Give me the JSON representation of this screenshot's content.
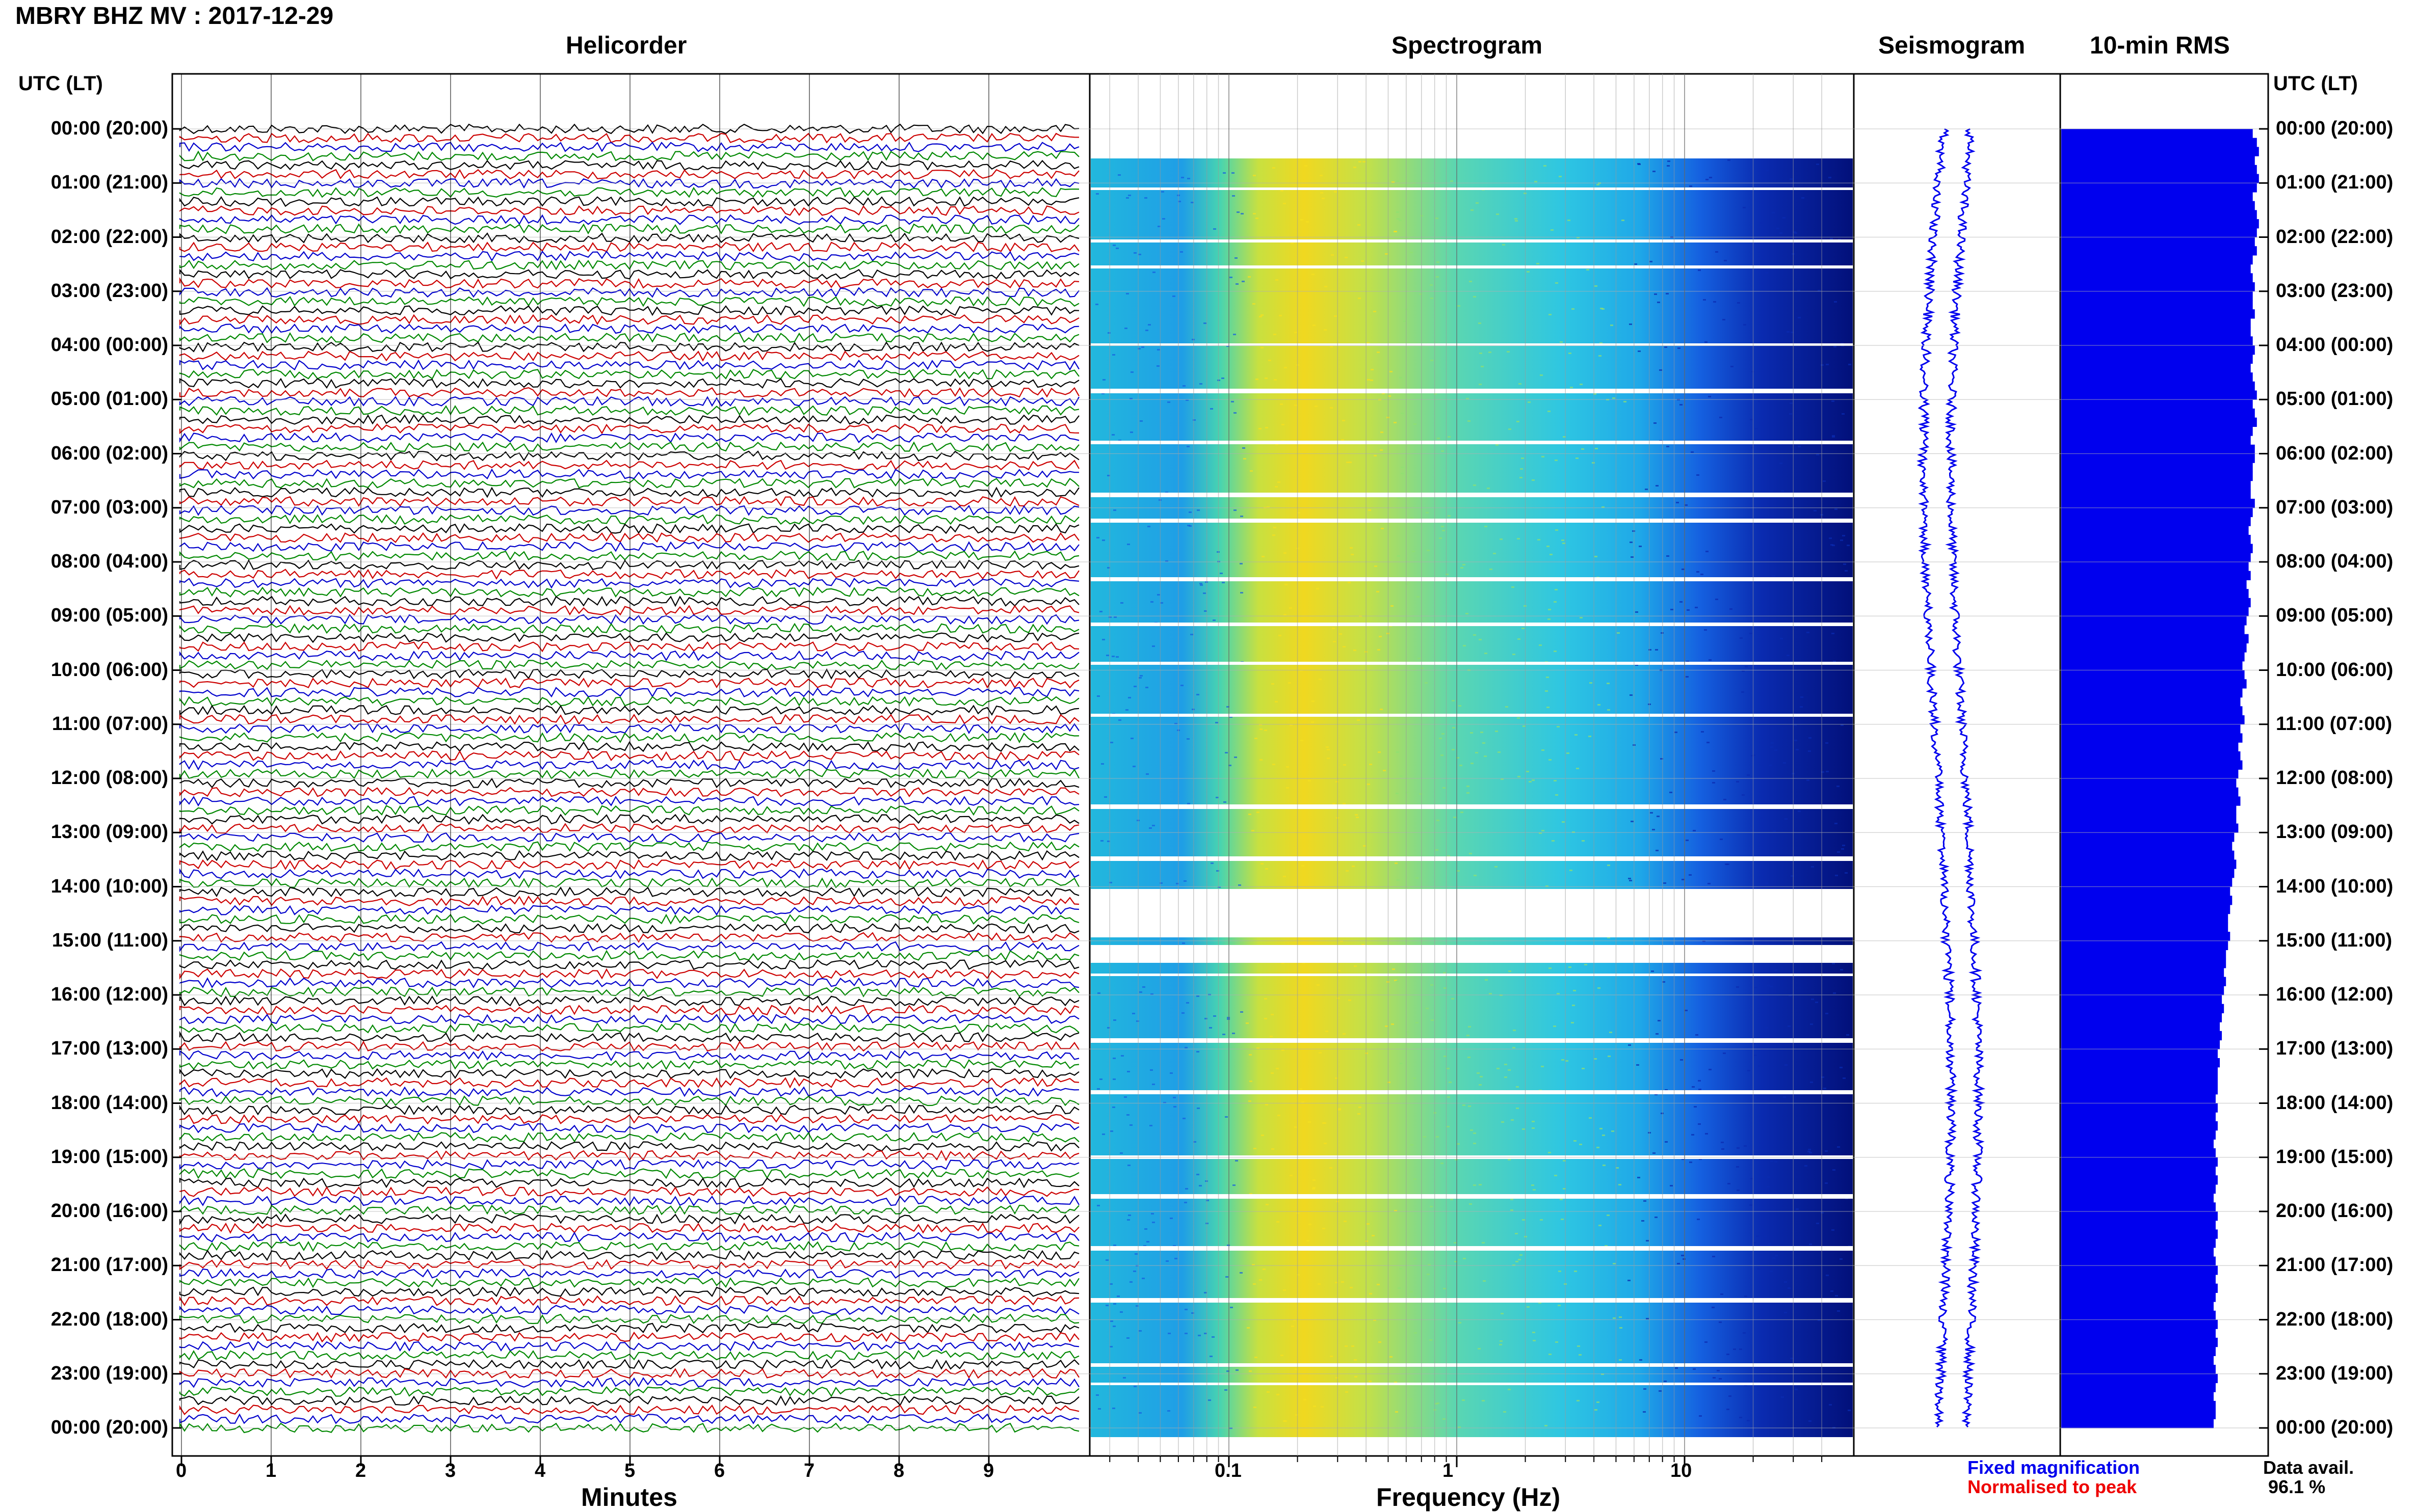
{
  "header": {
    "station_title": "MBRY BHZ MV : 2017-12-29",
    "utc_label_left": "UTC (LT)",
    "utc_label_right": "UTC (LT)"
  },
  "panels": {
    "helicorder": "Helicorder",
    "spectrogram": "Spectrogram",
    "seismogram": "Seismogram",
    "rms": "10-min RMS"
  },
  "time_labels": [
    "00:00 (20:00)",
    "01:00 (21:00)",
    "02:00 (22:00)",
    "03:00 (23:00)",
    "04:00 (00:00)",
    "05:00 (01:00)",
    "06:00 (02:00)",
    "07:00 (03:00)",
    "08:00 (04:00)",
    "09:00 (05:00)",
    "10:00 (06:00)",
    "11:00 (07:00)",
    "12:00 (08:00)",
    "13:00 (09:00)",
    "14:00 (10:00)",
    "15:00 (11:00)",
    "16:00 (12:00)",
    "17:00 (13:00)",
    "18:00 (14:00)",
    "19:00 (15:00)",
    "20:00 (16:00)",
    "21:00 (17:00)",
    "22:00 (18:00)",
    "23:00 (19:00)",
    "00:00 (20:00)"
  ],
  "footer": {
    "legend_fixed": "Fixed magnification",
    "legend_normalised": "Normalised to peak",
    "data_avail_label": "Data avail.",
    "data_avail_value": "96.1 %"
  },
  "colors": {
    "trace_cycle": [
      "#000000",
      "#cc0000",
      "#0000cc",
      "#008800"
    ],
    "rms_bar": "#0000ee",
    "seismogram": "#0000ee",
    "legend_fixed": "#0000ee",
    "legend_normalised": "#ee0000"
  },
  "chart_data": [
    {
      "type": "line",
      "panel": "helicorder",
      "xlabel": "Minutes",
      "xticks": [
        "0",
        "1",
        "2",
        "3",
        "4",
        "5",
        "6",
        "7",
        "8",
        "9"
      ],
      "xlim": [
        0,
        10
      ],
      "ylim": [
        "00:00 UTC",
        "00:00 UTC next day"
      ],
      "grid": true
    },
    {
      "type": "heatmap",
      "panel": "spectrogram",
      "xlabel": "Frequency (Hz)",
      "xscale": "log",
      "xticks": [
        "0.1",
        "1",
        "10"
      ],
      "xlim": [
        0.025,
        50
      ],
      "ylim": [
        "00:00 UTC",
        "00:00 UTC next day"
      ],
      "colormap": "jet",
      "grid": true
    },
    {
      "type": "line",
      "panel": "seismogram",
      "grid": true
    },
    {
      "type": "bar",
      "panel": "10-min RMS",
      "orientation": "horizontal",
      "values_relative": [
        0.93,
        0.95,
        0.96,
        0.94,
        0.95,
        0.96,
        0.95,
        0.93,
        0.94,
        0.95,
        0.96,
        0.95,
        0.94,
        0.95,
        0.93,
        0.92,
        0.93,
        0.94,
        0.93,
        0.93,
        0.94,
        0.92,
        0.92,
        0.93,
        0.94,
        0.93,
        0.92,
        0.93,
        0.94,
        0.95,
        0.93,
        0.94,
        0.95,
        0.93,
        0.92,
        0.94,
        0.94,
        0.93,
        0.93,
        0.92,
        0.92,
        0.94,
        0.93,
        0.92,
        0.91,
        0.92,
        0.93,
        0.92,
        0.91,
        0.92,
        0.9,
        0.91,
        0.92,
        0.91,
        0.9,
        0.89,
        0.91,
        0.9,
        0.89,
        0.88,
        0.89,
        0.9,
        0.88,
        0.87,
        0.88,
        0.89,
        0.87,
        0.88,
        0.86,
        0.87,
        0.88,
        0.86,
        0.85,
        0.86,
        0.87,
        0.85,
        0.85,
        0.86,
        0.84,
        0.83,
        0.84,
        0.85,
        0.84,
        0.83,
        0.82,
        0.83,
        0.82,
        0.81,
        0.81,
        0.82,
        0.81,
        0.8,
        0.8,
        0.79,
        0.8,
        0.79,
        0.78,
        0.79,
        0.78,
        0.77,
        0.78,
        0.77,
        0.76,
        0.77,
        0.76,
        0.76,
        0.76,
        0.75,
        0.76,
        0.75,
        0.76,
        0.75,
        0.74,
        0.75,
        0.76,
        0.75,
        0.76,
        0.75,
        0.74,
        0.75,
        0.76,
        0.75,
        0.76,
        0.75,
        0.74,
        0.75,
        0.76,
        0.75,
        0.76,
        0.75,
        0.74,
        0.75,
        0.76,
        0.75,
        0.76,
        0.75,
        0.74,
        0.75,
        0.76,
        0.75,
        0.74,
        0.75,
        0.75,
        0.74
      ],
      "grid": true
    }
  ]
}
